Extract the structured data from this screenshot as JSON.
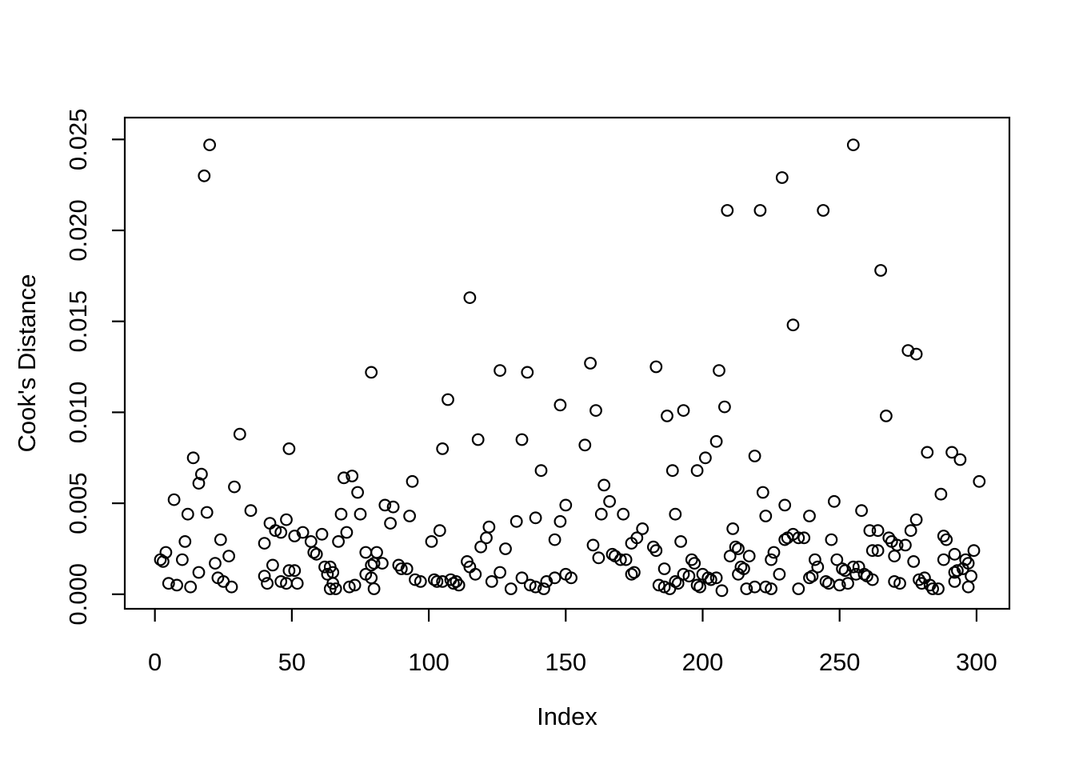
{
  "chart_data": {
    "type": "scatter",
    "title": "",
    "xlabel": "Index",
    "ylabel": "Cook's Distance",
    "x_ticks": [
      0,
      50,
      100,
      150,
      200,
      250,
      300
    ],
    "y_tick_labels": [
      "0.000",
      "0.005",
      "0.010",
      "0.015",
      "0.020",
      "0.025"
    ],
    "xlim": [
      -11,
      312
    ],
    "ylim": [
      -0.0008,
      0.0262
    ],
    "grid": false,
    "legend": "none",
    "marker": {
      "shape": "open-circle",
      "radius_px": 6.8,
      "stroke": "#000000",
      "stroke_width": 2.2,
      "fill": "none"
    },
    "points": [
      [
        2,
        0.0019
      ],
      [
        3,
        0.0018
      ],
      [
        4,
        0.0023
      ],
      [
        5,
        0.0006
      ],
      [
        7,
        0.0052
      ],
      [
        8,
        0.0005
      ],
      [
        10,
        0.0019
      ],
      [
        11,
        0.0029
      ],
      [
        12,
        0.0044
      ],
      [
        13,
        0.0004
      ],
      [
        14,
        0.0075
      ],
      [
        16,
        0.0061
      ],
      [
        16,
        0.0012
      ],
      [
        17,
        0.0066
      ],
      [
        18,
        0.023
      ],
      [
        19,
        0.0045
      ],
      [
        20,
        0.0247
      ],
      [
        22,
        0.0017
      ],
      [
        23,
        0.0009
      ],
      [
        24,
        0.003
      ],
      [
        25,
        0.0007
      ],
      [
        27,
        0.0021
      ],
      [
        28,
        0.0004
      ],
      [
        29,
        0.0059
      ],
      [
        31,
        0.0088
      ],
      [
        35,
        0.0046
      ],
      [
        40,
        0.0028
      ],
      [
        40,
        0.001
      ],
      [
        41,
        0.0006
      ],
      [
        42,
        0.0039
      ],
      [
        43,
        0.0016
      ],
      [
        44,
        0.0035
      ],
      [
        46,
        0.0034
      ],
      [
        46,
        0.0007
      ],
      [
        48,
        0.0041
      ],
      [
        48,
        0.0006
      ],
      [
        49,
        0.008
      ],
      [
        49,
        0.0013
      ],
      [
        51,
        0.0032
      ],
      [
        51,
        0.0013
      ],
      [
        52,
        0.0006
      ],
      [
        54,
        0.0034
      ],
      [
        57,
        0.0029
      ],
      [
        58,
        0.0023
      ],
      [
        59,
        0.0022
      ],
      [
        61,
        0.0033
      ],
      [
        62,
        0.0015
      ],
      [
        63,
        0.0011
      ],
      [
        64,
        0.0015
      ],
      [
        64,
        0.0003
      ],
      [
        65,
        0.0012
      ],
      [
        65,
        0.0006
      ],
      [
        66,
        0.0003
      ],
      [
        67,
        0.0029
      ],
      [
        68,
        0.0044
      ],
      [
        69,
        0.0064
      ],
      [
        70,
        0.0034
      ],
      [
        71,
        0.0004
      ],
      [
        72,
        0.0065
      ],
      [
        73,
        0.0005
      ],
      [
        74,
        0.0056
      ],
      [
        75,
        0.0044
      ],
      [
        77,
        0.0023
      ],
      [
        77,
        0.0011
      ],
      [
        79,
        0.0122
      ],
      [
        79,
        0.0016
      ],
      [
        79,
        0.0009
      ],
      [
        80,
        0.0017
      ],
      [
        80,
        0.0003
      ],
      [
        81,
        0.0023
      ],
      [
        83,
        0.0017
      ],
      [
        84,
        0.0049
      ],
      [
        86,
        0.0039
      ],
      [
        87,
        0.0048
      ],
      [
        89,
        0.0016
      ],
      [
        90,
        0.0014
      ],
      [
        92,
        0.0014
      ],
      [
        93,
        0.0043
      ],
      [
        94,
        0.0062
      ],
      [
        95,
        0.0008
      ],
      [
        97,
        0.0007
      ],
      [
        101,
        0.0029
      ],
      [
        102,
        0.0008
      ],
      [
        103,
        0.0007
      ],
      [
        104,
        0.0035
      ],
      [
        105,
        0.008
      ],
      [
        105,
        0.0007
      ],
      [
        107,
        0.0107
      ],
      [
        108,
        0.0008
      ],
      [
        109,
        0.0006
      ],
      [
        110,
        0.0007
      ],
      [
        111,
        0.0005
      ],
      [
        114,
        0.0018
      ],
      [
        115,
        0.0163
      ],
      [
        115,
        0.0015
      ],
      [
        117,
        0.0011
      ],
      [
        118,
        0.0085
      ],
      [
        119,
        0.0026
      ],
      [
        121,
        0.0031
      ],
      [
        122,
        0.0037
      ],
      [
        123,
        0.0007
      ],
      [
        126,
        0.0123
      ],
      [
        126,
        0.0012
      ],
      [
        128,
        0.0025
      ],
      [
        130,
        0.0003
      ],
      [
        132,
        0.004
      ],
      [
        134,
        0.0085
      ],
      [
        134,
        0.0009
      ],
      [
        136,
        0.0122
      ],
      [
        137,
        0.0005
      ],
      [
        139,
        0.0042
      ],
      [
        139,
        0.0004
      ],
      [
        141,
        0.0068
      ],
      [
        142,
        0.0003
      ],
      [
        143,
        0.0007
      ],
      [
        146,
        0.003
      ],
      [
        146,
        0.0009
      ],
      [
        148,
        0.0104
      ],
      [
        148,
        0.004
      ],
      [
        150,
        0.0049
      ],
      [
        150,
        0.0011
      ],
      [
        152,
        0.0009
      ],
      [
        157,
        0.0082
      ],
      [
        159,
        0.0127
      ],
      [
        160,
        0.0027
      ],
      [
        161,
        0.0101
      ],
      [
        162,
        0.002
      ],
      [
        163,
        0.0044
      ],
      [
        164,
        0.006
      ],
      [
        166,
        0.0051
      ],
      [
        167,
        0.0022
      ],
      [
        168,
        0.0021
      ],
      [
        170,
        0.0019
      ],
      [
        171,
        0.0044
      ],
      [
        172,
        0.0019
      ],
      [
        174,
        0.0028
      ],
      [
        174,
        0.0011
      ],
      [
        175,
        0.0012
      ],
      [
        176,
        0.0031
      ],
      [
        178,
        0.0036
      ],
      [
        182,
        0.0026
      ],
      [
        183,
        0.0125
      ],
      [
        183,
        0.0024
      ],
      [
        184,
        0.0005
      ],
      [
        186,
        0.0014
      ],
      [
        186,
        0.0004
      ],
      [
        187,
        0.0098
      ],
      [
        188,
        0.0003
      ],
      [
        189,
        0.0068
      ],
      [
        190,
        0.0044
      ],
      [
        190,
        0.0007
      ],
      [
        191,
        0.0006
      ],
      [
        192,
        0.0029
      ],
      [
        193,
        0.0101
      ],
      [
        193,
        0.0011
      ],
      [
        195,
        0.001
      ],
      [
        196,
        0.0019
      ],
      [
        197,
        0.0017
      ],
      [
        198,
        0.0068
      ],
      [
        198,
        0.0005
      ],
      [
        199,
        0.0004
      ],
      [
        200,
        0.0011
      ],
      [
        201,
        0.0075
      ],
      [
        202,
        0.0009
      ],
      [
        203,
        0.0008
      ],
      [
        205,
        0.0084
      ],
      [
        205,
        0.0009
      ],
      [
        206,
        0.0123
      ],
      [
        207,
        0.0002
      ],
      [
        208,
        0.0103
      ],
      [
        209,
        0.0211
      ],
      [
        210,
        0.0021
      ],
      [
        211,
        0.0036
      ],
      [
        212,
        0.0026
      ],
      [
        213,
        0.0025
      ],
      [
        213,
        0.0011
      ],
      [
        214,
        0.0015
      ],
      [
        215,
        0.0014
      ],
      [
        216,
        0.0003
      ],
      [
        217,
        0.0021
      ],
      [
        219,
        0.0076
      ],
      [
        219,
        0.0004
      ],
      [
        221,
        0.0211
      ],
      [
        222,
        0.0056
      ],
      [
        223,
        0.0043
      ],
      [
        223,
        0.0004
      ],
      [
        225,
        0.0019
      ],
      [
        225,
        0.0003
      ],
      [
        226,
        0.0023
      ],
      [
        228,
        0.0011
      ],
      [
        229,
        0.0229
      ],
      [
        230,
        0.0049
      ],
      [
        230,
        0.003
      ],
      [
        231,
        0.0031
      ],
      [
        233,
        0.0148
      ],
      [
        233,
        0.0033
      ],
      [
        235,
        0.0031
      ],
      [
        235,
        0.0003
      ],
      [
        237,
        0.0031
      ],
      [
        239,
        0.0043
      ],
      [
        239,
        0.0009
      ],
      [
        240,
        0.001
      ],
      [
        241,
        0.0019
      ],
      [
        242,
        0.0015
      ],
      [
        244,
        0.0211
      ],
      [
        245,
        0.0007
      ],
      [
        246,
        0.0006
      ],
      [
        247,
        0.003
      ],
      [
        248,
        0.0051
      ],
      [
        249,
        0.0019
      ],
      [
        250,
        0.0005
      ],
      [
        251,
        0.0014
      ],
      [
        252,
        0.0013
      ],
      [
        253,
        0.0006
      ],
      [
        255,
        0.0247
      ],
      [
        255,
        0.0015
      ],
      [
        256,
        0.0011
      ],
      [
        257,
        0.0015
      ],
      [
        258,
        0.0046
      ],
      [
        259,
        0.0011
      ],
      [
        260,
        0.001
      ],
      [
        261,
        0.0035
      ],
      [
        262,
        0.0024
      ],
      [
        262,
        0.0008
      ],
      [
        264,
        0.0035
      ],
      [
        264,
        0.0024
      ],
      [
        265,
        0.0178
      ],
      [
        267,
        0.0098
      ],
      [
        268,
        0.0031
      ],
      [
        269,
        0.0029
      ],
      [
        270,
        0.0021
      ],
      [
        270,
        0.0007
      ],
      [
        271,
        0.0027
      ],
      [
        272,
        0.0006
      ],
      [
        274,
        0.0027
      ],
      [
        275,
        0.0134
      ],
      [
        276,
        0.0035
      ],
      [
        277,
        0.0018
      ],
      [
        278,
        0.0132
      ],
      [
        278,
        0.0041
      ],
      [
        279,
        0.0008
      ],
      [
        280,
        0.0006
      ],
      [
        281,
        0.0009
      ],
      [
        282,
        0.0078
      ],
      [
        283,
        0.0005
      ],
      [
        284,
        0.0003
      ],
      [
        286,
        0.0003
      ],
      [
        287,
        0.0055
      ],
      [
        288,
        0.0032
      ],
      [
        288,
        0.0019
      ],
      [
        289,
        0.003
      ],
      [
        291,
        0.0078
      ],
      [
        292,
        0.0022
      ],
      [
        292,
        0.0012
      ],
      [
        292,
        0.0007
      ],
      [
        293,
        0.0013
      ],
      [
        294,
        0.0074
      ],
      [
        295,
        0.0014
      ],
      [
        296,
        0.0019
      ],
      [
        297,
        0.0017
      ],
      [
        297,
        0.0004
      ],
      [
        298,
        0.001
      ],
      [
        299,
        0.0024
      ],
      [
        301,
        0.0062
      ]
    ]
  }
}
